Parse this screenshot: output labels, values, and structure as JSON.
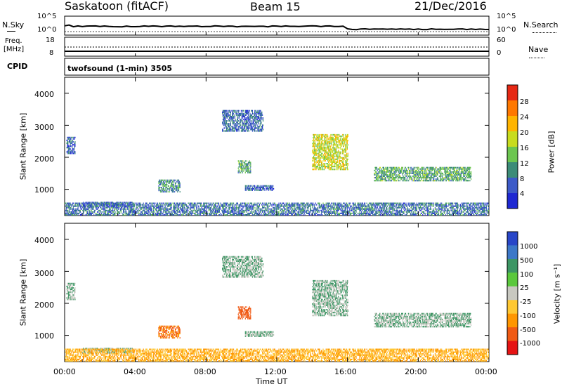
{
  "header": {
    "station": "Saskatoon (fitACF)",
    "beam": "Beam 15",
    "date": "21/Dec/2016"
  },
  "noise_panel": {
    "left_label": "N.Sky",
    "left_ticks": [
      "10^5",
      "10^0"
    ],
    "right_label": "N.Search",
    "right_ticks": [
      "10^5",
      "10^0"
    ]
  },
  "freq_panel": {
    "left_label_line1": "Freq.",
    "left_label_line2": "[MHz]",
    "left_ticks": [
      "18",
      "8"
    ],
    "right_label": "Nave",
    "right_ticks": [
      "60",
      "0"
    ]
  },
  "cpid": {
    "label": "CPID",
    "program": "twofsound (1-min) 3505"
  },
  "power_panel": {
    "ylabel": "Slant Range [km]",
    "yticks": [
      "4000",
      "3000",
      "2000",
      "1000"
    ],
    "colorbar_label": "Power [dB]",
    "colorbar_ticks": [
      "28",
      "24",
      "20",
      "16",
      "12",
      "8",
      "4"
    ],
    "colors": [
      "#1e28d2",
      "#3c5ac8",
      "#3c8c78",
      "#6cc650",
      "#c8dc1e",
      "#ffb400",
      "#ff7800",
      "#e62814"
    ]
  },
  "velocity_panel": {
    "ylabel": "Slant Range [km]",
    "yticks": [
      "4000",
      "3000",
      "2000",
      "1000"
    ],
    "colorbar_label": "Velocity [m s⁻¹]",
    "colorbar_ticks": [
      "1000",
      "500",
      "100",
      "25",
      "-25",
      "-100",
      "-500",
      "-1000"
    ],
    "colors": [
      "#2846c8",
      "#3c78c8",
      "#3c9664",
      "#5ac83c",
      "#c8c8c0",
      "#ffc832",
      "#ff9600",
      "#f05a14",
      "#e61414"
    ]
  },
  "xaxis": {
    "ticks": [
      "00:00",
      "04:00",
      "08:00",
      "12:00",
      "16:00",
      "20:00",
      "00:00"
    ],
    "label": "Time UT"
  },
  "chart_data": {
    "type": "heatmap",
    "title": "Saskatoon (fitACF) Beam 15 21/Dec/2016",
    "xlabel": "Time UT",
    "ylabel": "Slant Range [km]",
    "x_ticks": [
      "00:00",
      "04:00",
      "08:00",
      "12:00",
      "16:00",
      "20:00",
      "00:00"
    ],
    "xlim_hours": [
      0,
      24
    ],
    "ylim_km": [
      180,
      4500
    ],
    "power_db_range": [
      0,
      32
    ],
    "velocity_range": [
      -1000,
      1000
    ],
    "scatter_regions": [
      {
        "t_start": 0.1,
        "t_end": 0.6,
        "r_start": 2100,
        "r_end": 2600,
        "power_db": 6,
        "velocity": 25
      },
      {
        "t_start": 1.0,
        "t_end": 3.8,
        "r_start": 430,
        "r_end": 600,
        "power_db": 5,
        "velocity": 25
      },
      {
        "t_start": 5.3,
        "t_end": 6.5,
        "r_start": 900,
        "r_end": 1300,
        "power_db": 10,
        "velocity": -500
      },
      {
        "t_start": 8.9,
        "t_end": 11.2,
        "r_start": 2800,
        "r_end": 3450,
        "power_db": 7,
        "velocity": 25
      },
      {
        "t_start": 9.8,
        "t_end": 10.5,
        "r_start": 1500,
        "r_end": 1900,
        "power_db": 12,
        "velocity": -700
      },
      {
        "t_start": 10.2,
        "t_end": 11.8,
        "r_start": 950,
        "r_end": 1100,
        "power_db": 6,
        "velocity": 25
      },
      {
        "t_start": 14.0,
        "t_end": 16.0,
        "r_start": 1600,
        "r_end": 2700,
        "power_db": 18,
        "velocity": 25
      },
      {
        "t_start": 17.5,
        "t_end": 23.0,
        "r_start": 1250,
        "r_end": 1700,
        "power_db": 12,
        "velocity": 25
      },
      {
        "t_start": 0.0,
        "t_end": 24.0,
        "r_start": 180,
        "r_end": 550,
        "power_db": 8,
        "velocity": -100
      }
    ]
  }
}
